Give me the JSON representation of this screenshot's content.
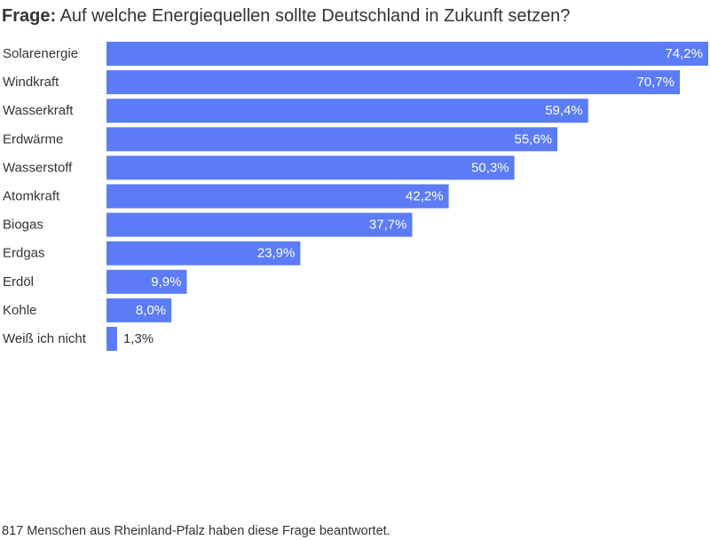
{
  "title": {
    "lead": "Frage:",
    "text": "Auf welche Energiequellen sollte Deutschland in Zukunft setzen?"
  },
  "footnote": "817 Menschen aus Rheinland-Pfalz haben diese Frage beantwortet.",
  "colors": {
    "bar": "#5b7cf6",
    "label_inside": "#ffffff",
    "label_outside": "#333333",
    "text": "#333333"
  },
  "chart_data": {
    "type": "bar",
    "orientation": "horizontal",
    "title": "Frage: Auf welche Energiequellen sollte Deutschland in Zukunft setzen?",
    "unit": "%",
    "xlim": [
      0,
      74.2
    ],
    "grid": false,
    "legend": "none",
    "categories": [
      "Solarenergie",
      "Windkraft",
      "Wasserkraft",
      "Erdwärme",
      "Wasserstoff",
      "Atomkraft",
      "Biogas",
      "Erdgas",
      "Erdöl",
      "Kohle",
      "Weiß ich nicht"
    ],
    "values": [
      74.2,
      70.7,
      59.4,
      55.6,
      50.3,
      42.2,
      37.7,
      23.9,
      9.9,
      8.0,
      1.3
    ],
    "value_labels": [
      "74,2%",
      "70,7%",
      "59,4%",
      "55,6%",
      "50,3%",
      "42,2%",
      "37,7%",
      "23,9%",
      "9,9%",
      "8,0%",
      "1,3%"
    ]
  }
}
